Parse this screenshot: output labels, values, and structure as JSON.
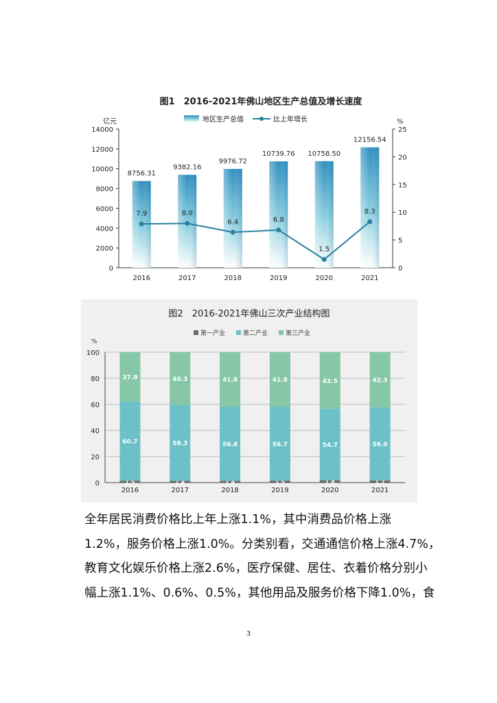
{
  "chart_data": [
    {
      "type": "bar+line",
      "title": "图1　2016-2021年佛山地区生产总值及增长速度",
      "y_left_unit": "亿元",
      "y_right_unit": "%",
      "categories": [
        "2016",
        "2017",
        "2018",
        "2019",
        "2020",
        "2021"
      ],
      "series": [
        {
          "name": "地区生产总值",
          "type": "bar",
          "axis": "left",
          "values": [
            8756.31,
            9382.16,
            9976.72,
            10739.76,
            10758.5,
            12156.54
          ],
          "labels": [
            "8756.31",
            "9382.16",
            "9976.72",
            "10739.76",
            "10758.50",
            "12156.54"
          ]
        },
        {
          "name": "比上年增长",
          "type": "line",
          "axis": "right",
          "values": [
            7.9,
            8.0,
            6.4,
            6.8,
            1.5,
            8.3
          ],
          "labels": [
            "7.9",
            "8.0",
            "6.4",
            "6.8",
            "1.5",
            "8.3"
          ]
        }
      ],
      "y_left_ticks": [
        "0",
        "2000",
        "4000",
        "6000",
        "8000",
        "10000",
        "12000",
        "14000"
      ],
      "y_left_range": [
        0,
        14000
      ],
      "y_right_ticks": [
        "0",
        "5",
        "10",
        "15",
        "20",
        "25"
      ],
      "y_right_range": [
        0,
        25
      ],
      "legend_position": "top-center",
      "colors": {
        "bar_top": "#2e8fbf",
        "bar_mid": "#8fd1e0",
        "bar_bottom": "#ffffff",
        "line": "#2a7f9e"
      }
    },
    {
      "type": "stacked-bar",
      "title": "图2　2016-2021年佛山三次产业结构图",
      "y_unit": "%",
      "categories": [
        "2016",
        "2017",
        "2018",
        "2019",
        "2020",
        "2021"
      ],
      "series": [
        {
          "name": "第一产业",
          "values": [
            1.5,
            1.4,
            1.4,
            1.5,
            1.8,
            1.7
          ],
          "labels": [
            "1.5",
            "1.4",
            "1.4",
            "1.5",
            "1.8",
            "1.7"
          ],
          "color": "#6b6b6b"
        },
        {
          "name": "第二产业",
          "values": [
            60.7,
            58.3,
            56.8,
            56.7,
            54.7,
            56.0
          ],
          "labels": [
            "60.7",
            "58.3",
            "56.8",
            "56.7",
            "54.7",
            "56.0"
          ],
          "color": "#6cc0c8"
        },
        {
          "name": "第三产业",
          "values": [
            37.8,
            40.3,
            41.8,
            41.8,
            43.5,
            42.3
          ],
          "labels": [
            "37.8",
            "40.3",
            "41.8",
            "41.8",
            "43.5",
            "42.3"
          ],
          "color": "#85c7a6"
        }
      ],
      "y_ticks": [
        "0",
        "20",
        "40",
        "60",
        "80",
        "100"
      ],
      "y_range": [
        0,
        100
      ],
      "grid": true,
      "legend_position": "top-center"
    }
  ],
  "paragraph_lines": [
    "全年居民消费价格比上年上涨1.1%，其中消费品价格上涨",
    "1.2%，服务价格上涨1.0%。分类别看，交通通信价格上涨4.7%，",
    "教育文化娱乐价格上涨2.6%，医疗保健、居住、衣着价格分别小",
    "幅上涨1.1%、0.6%、0.5%，其他用品及服务价格下降1.0%，食"
  ],
  "page_number": "3"
}
